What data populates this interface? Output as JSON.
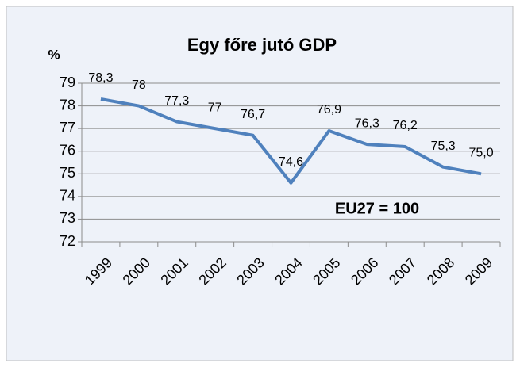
{
  "chart_data": {
    "type": "line",
    "title": "Egy főre jutó GDP",
    "y_label": "%",
    "annotation": "EU27 = 100",
    "categories": [
      "1999",
      "2000",
      "2001",
      "2002",
      "2003",
      "2004",
      "2005",
      "2006",
      "2007",
      "2008",
      "2009"
    ],
    "series": [
      {
        "name": "GDP",
        "color": "#4f81bd",
        "values": [
          78.3,
          78,
          77.3,
          77,
          76.7,
          74.6,
          76.9,
          76.3,
          76.2,
          75.3,
          75.0
        ],
        "value_labels": [
          "78,3",
          "78",
          "77,3",
          "77",
          "76,7",
          "74,6",
          "76,9",
          "76,3",
          "76,2",
          "75,3",
          "75,0"
        ]
      }
    ],
    "ylim": [
      72,
      79
    ],
    "yticks": [
      72,
      73,
      74,
      75,
      76,
      77,
      78,
      79
    ],
    "grid": true
  }
}
